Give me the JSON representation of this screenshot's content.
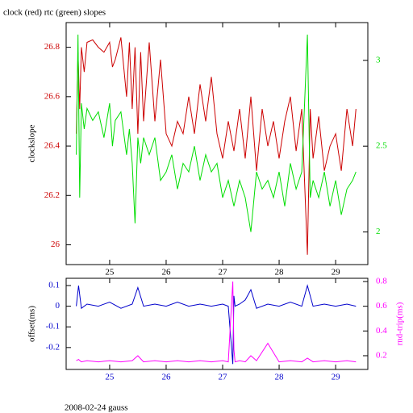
{
  "chart_data": [
    {
      "type": "line",
      "title": "clock (red) rtc (green) slopes",
      "ylabel": "clockslope",
      "x": [
        24.41,
        24.44,
        24.47,
        24.5,
        24.55,
        24.6,
        24.7,
        24.8,
        24.9,
        25.0,
        25.05,
        25.1,
        25.2,
        25.3,
        25.35,
        25.4,
        25.45,
        25.5,
        25.55,
        25.6,
        25.7,
        25.8,
        25.9,
        26.0,
        26.1,
        26.2,
        26.3,
        26.4,
        26.5,
        26.6,
        26.7,
        26.8,
        26.9,
        27.0,
        27.1,
        27.2,
        27.3,
        27.4,
        27.5,
        27.6,
        27.7,
        27.8,
        27.9,
        28.0,
        28.1,
        28.2,
        28.3,
        28.4,
        28.5,
        28.55,
        28.6,
        28.7,
        28.8,
        28.9,
        29.0,
        29.1,
        29.2,
        29.3,
        29.36
      ],
      "xlim": [
        24.23,
        29.57
      ],
      "xticks": [
        25,
        26,
        27,
        28,
        29
      ],
      "ylim": [
        25.92,
        26.9
      ],
      "yticks": [
        26,
        26.2,
        26.4,
        26.6,
        26.8
      ],
      "y2lim": [
        1.81,
        3.22
      ],
      "y2ticks": [
        2,
        2.5,
        3
      ],
      "series": [
        {
          "color": "#cc0000",
          "values": [
            26.45,
            26.78,
            26.55,
            26.8,
            26.7,
            26.82,
            26.83,
            26.8,
            26.78,
            26.82,
            26.72,
            26.75,
            26.84,
            26.6,
            26.82,
            26.55,
            26.8,
            26.45,
            26.78,
            26.5,
            26.82,
            26.5,
            26.75,
            26.45,
            26.4,
            26.5,
            26.45,
            26.6,
            26.45,
            26.65,
            26.5,
            26.68,
            26.45,
            26.35,
            26.5,
            26.38,
            26.55,
            26.35,
            26.6,
            26.3,
            26.55,
            26.4,
            26.5,
            26.35,
            26.5,
            26.6,
            26.38,
            26.55,
            25.96,
            26.55,
            26.35,
            26.52,
            26.3,
            26.4,
            26.45,
            26.3,
            26.55,
            26.4,
            26.55
          ]
        },
        {
          "color": "#00dd00",
          "axis": "y2",
          "values": [
            2.45,
            3.15,
            2.2,
            2.75,
            2.6,
            2.72,
            2.65,
            2.7,
            2.55,
            2.75,
            2.5,
            2.65,
            2.7,
            2.45,
            2.6,
            2.4,
            2.05,
            2.55,
            2.4,
            2.55,
            2.45,
            2.55,
            2.3,
            2.35,
            2.45,
            2.25,
            2.4,
            2.35,
            2.5,
            2.3,
            2.45,
            2.35,
            2.4,
            2.2,
            2.3,
            2.15,
            2.3,
            2.2,
            2.0,
            2.35,
            2.25,
            2.3,
            2.2,
            2.35,
            2.15,
            2.4,
            2.25,
            2.35,
            3.15,
            2.2,
            2.3,
            2.2,
            2.35,
            2.15,
            2.3,
            2.1,
            2.25,
            2.3,
            2.35
          ]
        }
      ]
    },
    {
      "type": "line",
      "ylabel": "offset(ms)",
      "y2label": "rnd-trip(ms)",
      "caption": "2008-02-24 gauss",
      "x": [
        24.41,
        24.45,
        24.5,
        24.6,
        24.8,
        25.0,
        25.2,
        25.4,
        25.5,
        25.6,
        25.8,
        26.0,
        26.2,
        26.4,
        26.6,
        26.8,
        27.0,
        27.1,
        27.18,
        27.2,
        27.22,
        27.3,
        27.4,
        27.5,
        27.6,
        27.8,
        28.0,
        28.2,
        28.4,
        28.5,
        28.6,
        28.8,
        29.0,
        29.2,
        29.36
      ],
      "xlim": [
        24.23,
        29.57
      ],
      "xticks": [
        25,
        26,
        27,
        28,
        29
      ],
      "ylim": [
        -0.306,
        0.135
      ],
      "yticks": [
        -0.2,
        -0.1,
        0,
        0.1
      ],
      "y2lim": [
        0.089,
        0.826
      ],
      "y2ticks": [
        0.2,
        0.4,
        0.6,
        0.8
      ],
      "series": [
        {
          "color": "#0000cc",
          "values": [
            0,
            0.1,
            -0.01,
            0.01,
            0,
            0.02,
            -0.01,
            0.01,
            0.09,
            0,
            0.01,
            0,
            0.02,
            0,
            0.01,
            0,
            0.01,
            0,
            -0.28,
            0.05,
            0,
            0.01,
            0.03,
            0.08,
            -0.01,
            0.01,
            0,
            0.02,
            0,
            0.1,
            0,
            0.01,
            0,
            0.01,
            0
          ]
        },
        {
          "color": "#ff00ff",
          "axis": "y2",
          "values": [
            0.16,
            0.17,
            0.15,
            0.16,
            0.15,
            0.16,
            0.15,
            0.16,
            0.2,
            0.15,
            0.16,
            0.15,
            0.16,
            0.15,
            0.16,
            0.15,
            0.16,
            0.15,
            0.8,
            0.25,
            0.15,
            0.16,
            0.15,
            0.2,
            0.16,
            0.3,
            0.15,
            0.16,
            0.15,
            0.18,
            0.15,
            0.16,
            0.15,
            0.16,
            0.15
          ]
        }
      ]
    }
  ]
}
